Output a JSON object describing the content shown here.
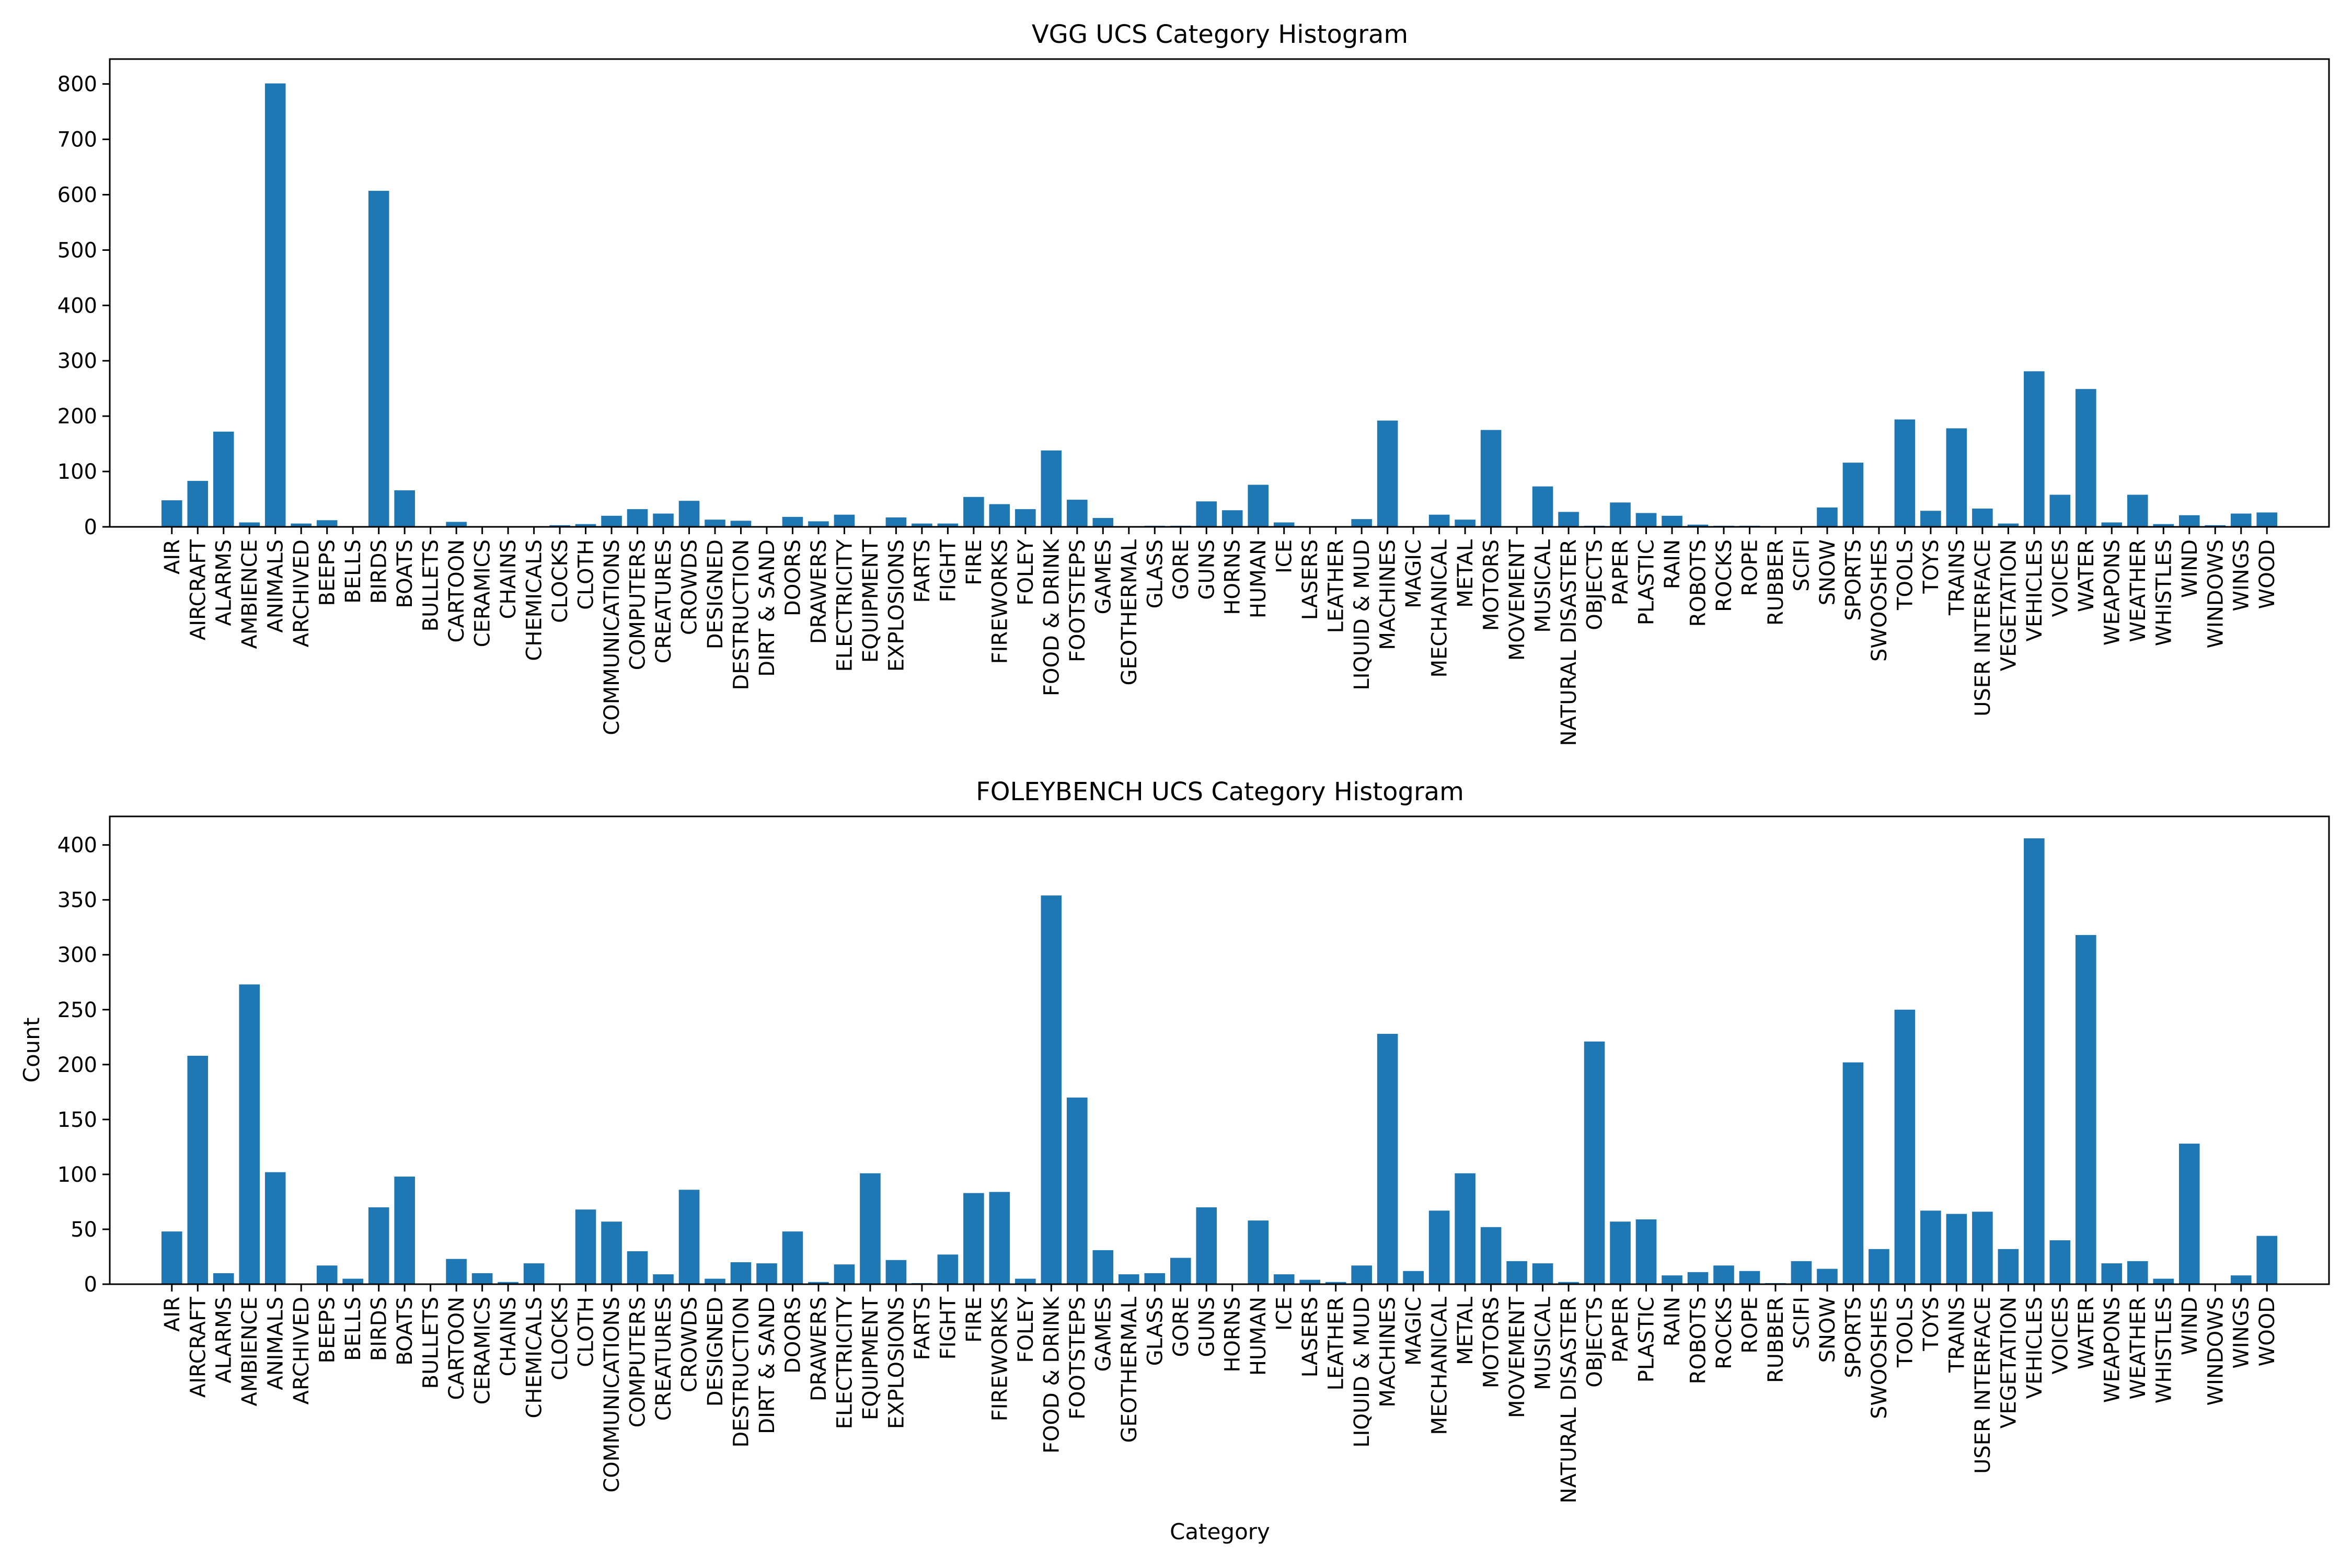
{
  "chart_data": [
    {
      "type": "bar",
      "title": "VGG UCS Category Histogram",
      "xlabel": "",
      "ylabel": "",
      "ylim": [
        0,
        845
      ],
      "yticks": [
        0,
        100,
        200,
        300,
        400,
        500,
        600,
        700,
        800
      ],
      "grid": false,
      "color": "#1f77b4",
      "categories": [
        "AIR",
        "AIRCRAFT",
        "ALARMS",
        "AMBIENCE",
        "ANIMALS",
        "ARCHIVED",
        "BEEPS",
        "BELLS",
        "BIRDS",
        "BOATS",
        "BULLETS",
        "CARTOON",
        "CERAMICS",
        "CHAINS",
        "CHEMICALS",
        "CLOCKS",
        "CLOTH",
        "COMMUNICATIONS",
        "COMPUTERS",
        "CREATURES",
        "CROWDS",
        "DESIGNED",
        "DESTRUCTION",
        "DIRT & SAND",
        "DOORS",
        "DRAWERS",
        "ELECTRICITY",
        "EQUIPMENT",
        "EXPLOSIONS",
        "FARTS",
        "FIGHT",
        "FIRE",
        "FIREWORKS",
        "FOLEY",
        "FOOD & DRINK",
        "FOOTSTEPS",
        "GAMES",
        "GEOTHERMAL",
        "GLASS",
        "GORE",
        "GUNS",
        "HORNS",
        "HUMAN",
        "ICE",
        "LASERS",
        "LEATHER",
        "LIQUID & MUD",
        "MACHINES",
        "MAGIC",
        "MECHANICAL",
        "METAL",
        "MOTORS",
        "MOVEMENT",
        "MUSICAL",
        "NATURAL DISASTER",
        "OBJECTS",
        "PAPER",
        "PLASTIC",
        "RAIN",
        "ROBOTS",
        "ROCKS",
        "ROPE",
        "RUBBER",
        "SCIFI",
        "SNOW",
        "SPORTS",
        "SWOOSHES",
        "TOOLS",
        "TOYS",
        "TRAINS",
        "USER INTERFACE",
        "VEGETATION",
        "VEHICLES",
        "VOICES",
        "WATER",
        "WEAPONS",
        "WEATHER",
        "WHISTLES",
        "WIND",
        "WINDOWS",
        "WINGS",
        "WOOD"
      ],
      "values": [
        48,
        83,
        172,
        8,
        801,
        6,
        12,
        0,
        607,
        66,
        0,
        9,
        0,
        0,
        0,
        3,
        5,
        20,
        32,
        24,
        47,
        13,
        11,
        0,
        18,
        10,
        22,
        0,
        17,
        6,
        6,
        54,
        41,
        32,
        138,
        49,
        16,
        0,
        2,
        2,
        46,
        30,
        76,
        8,
        0,
        0,
        14,
        192,
        0,
        22,
        13,
        175,
        0,
        73,
        27,
        2,
        44,
        25,
        20,
        4,
        2,
        2,
        1,
        1,
        35,
        116,
        0,
        194,
        29,
        178,
        33,
        6,
        281,
        58,
        249,
        8,
        58,
        5,
        21,
        3,
        24,
        26
      ]
    },
    {
      "type": "bar",
      "title": "FOLEYBENCH UCS Category Histogram",
      "xlabel": "Category",
      "ylabel": "Count",
      "ylim": [
        0,
        426
      ],
      "yticks": [
        0,
        50,
        100,
        150,
        200,
        250,
        300,
        350,
        400
      ],
      "grid": false,
      "color": "#1f77b4",
      "categories": [
        "AIR",
        "AIRCRAFT",
        "ALARMS",
        "AMBIENCE",
        "ANIMALS",
        "ARCHIVED",
        "BEEPS",
        "BELLS",
        "BIRDS",
        "BOATS",
        "BULLETS",
        "CARTOON",
        "CERAMICS",
        "CHAINS",
        "CHEMICALS",
        "CLOCKS",
        "CLOTH",
        "COMMUNICATIONS",
        "COMPUTERS",
        "CREATURES",
        "CROWDS",
        "DESIGNED",
        "DESTRUCTION",
        "DIRT & SAND",
        "DOORS",
        "DRAWERS",
        "ELECTRICITY",
        "EQUIPMENT",
        "EXPLOSIONS",
        "FARTS",
        "FIGHT",
        "FIRE",
        "FIREWORKS",
        "FOLEY",
        "FOOD & DRINK",
        "FOOTSTEPS",
        "GAMES",
        "GEOTHERMAL",
        "GLASS",
        "GORE",
        "GUNS",
        "HORNS",
        "HUMAN",
        "ICE",
        "LASERS",
        "LEATHER",
        "LIQUID & MUD",
        "MACHINES",
        "MAGIC",
        "MECHANICAL",
        "METAL",
        "MOTORS",
        "MOVEMENT",
        "MUSICAL",
        "NATURAL DISASTER",
        "OBJECTS",
        "PAPER",
        "PLASTIC",
        "RAIN",
        "ROBOTS",
        "ROCKS",
        "ROPE",
        "RUBBER",
        "SCIFI",
        "SNOW",
        "SPORTS",
        "SWOOSHES",
        "TOOLS",
        "TOYS",
        "TRAINS",
        "USER INTERFACE",
        "VEGETATION",
        "VEHICLES",
        "VOICES",
        "WATER",
        "WEAPONS",
        "WEATHER",
        "WHISTLES",
        "WIND",
        "WINDOWS",
        "WINGS",
        "WOOD"
      ],
      "values": [
        48,
        208,
        10,
        273,
        102,
        0,
        17,
        5,
        70,
        98,
        0,
        23,
        10,
        2,
        19,
        0,
        68,
        57,
        30,
        9,
        86,
        5,
        20,
        19,
        48,
        2,
        18,
        101,
        22,
        1,
        27,
        83,
        84,
        5,
        354,
        170,
        31,
        9,
        10,
        24,
        70,
        0,
        58,
        9,
        4,
        2,
        17,
        228,
        12,
        67,
        101,
        52,
        21,
        19,
        2,
        221,
        57,
        59,
        8,
        11,
        17,
        12,
        1,
        21,
        14,
        202,
        32,
        250,
        67,
        64,
        66,
        32,
        406,
        40,
        318,
        19,
        21,
        5,
        128,
        0,
        8,
        44
      ]
    }
  ]
}
